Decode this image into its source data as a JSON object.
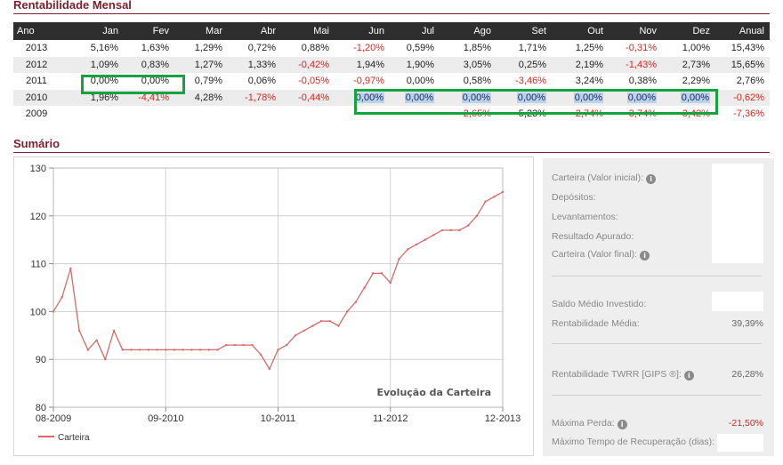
{
  "rentabilidade": {
    "title": "Rentabilidade Mensal",
    "headers": [
      "Ano",
      "Jan",
      "Fev",
      "Mar",
      "Abr",
      "Mai",
      "Jun",
      "Jul",
      "Ago",
      "Set",
      "Out",
      "Nov",
      "Dez",
      "Anual"
    ],
    "rows": [
      {
        "ano": "2013",
        "cells": [
          "5,16%",
          "1,63%",
          "1,29%",
          "0,72%",
          "0,88%",
          "-1,20%",
          "0,59%",
          "1,85%",
          "1,71%",
          "1,25%",
          "-0,31%",
          "1,00%",
          "15,43%"
        ]
      },
      {
        "ano": "2012",
        "cells": [
          "1,09%",
          "0,83%",
          "1,27%",
          "1,33%",
          "-0,42%",
          "1,94%",
          "1,90%",
          "3,05%",
          "0,25%",
          "2,19%",
          "-1,43%",
          "2,73%",
          "15,65%"
        ]
      },
      {
        "ano": "2011",
        "cells": [
          "0,00%",
          "0,00%",
          "0,79%",
          "0,06%",
          "-0,05%",
          "-0,97%",
          "0,00%",
          "0,58%",
          "-3,46%",
          "3,24%",
          "0,38%",
          "2,29%",
          "2,76%"
        ]
      },
      {
        "ano": "2010",
        "cells": [
          "1,96%",
          "-4,41%",
          "4,28%",
          "-1,78%",
          "-0,44%",
          "0,00%",
          "0,00%",
          "0,00%",
          "0,00%",
          "0,00%",
          "0,00%",
          "0,00%",
          "-0,62%"
        ]
      },
      {
        "ano": "2009",
        "cells": [
          "",
          "",
          "",
          "",
          "",
          "",
          "",
          "-2,65%",
          "5,23%",
          "-2,74%",
          "-3,74%",
          "-3,42%",
          "-7,36%"
        ]
      }
    ]
  },
  "sumario": {
    "title": "Sumário",
    "items": {
      "carteira_inicial": {
        "label": "Carteira (Valor inicial):",
        "value": ""
      },
      "depositos": {
        "label": "Depósitos:",
        "value": ""
      },
      "levantamentos": {
        "label": "Levantamentos:",
        "value": ""
      },
      "resultado": {
        "label": "Resultado Apurado:",
        "value": ""
      },
      "carteira_final": {
        "label": "Carteira (Valor final):",
        "value": ""
      },
      "saldo_medio": {
        "label": "Saldo Médio Investido:",
        "value": ""
      },
      "rent_media": {
        "label": "Rentabilidade Média:",
        "value": "39,39%"
      },
      "rent_twrr": {
        "label": "Rentabilidade TWRR [GIPS ®]:",
        "value": "26,28%"
      },
      "max_perda": {
        "label": "Máxima Perda:",
        "value": "-21,50%"
      },
      "max_tempo": {
        "label": "Máximo Tempo de Recuperação (dias):",
        "value": ""
      }
    }
  },
  "chart_data": {
    "type": "line",
    "title": "Evolução da Carteira",
    "xlabel": "",
    "ylabel": "",
    "x_ticks": [
      "08-2009",
      "09-2010",
      "10-2011",
      "11-2012",
      "12-2013"
    ],
    "y_ticks": [
      80,
      90,
      100,
      110,
      120,
      130
    ],
    "ylim": [
      80,
      130
    ],
    "xlim": [
      "2009-08",
      "2013-12"
    ],
    "grid": true,
    "legend_position": "bottom-left",
    "series": [
      {
        "name": "Carteira",
        "color": "#d66a6a",
        "x": [
          "2009-08",
          "2009-09",
          "2009-10",
          "2009-11",
          "2009-12",
          "2010-01",
          "2010-02",
          "2010-03",
          "2010-04",
          "2010-05",
          "2010-06",
          "2010-07",
          "2010-08",
          "2010-09",
          "2010-10",
          "2010-11",
          "2010-12",
          "2011-01",
          "2011-02",
          "2011-03",
          "2011-04",
          "2011-05",
          "2011-06",
          "2011-07",
          "2011-08",
          "2011-09",
          "2011-10",
          "2011-11",
          "2011-12",
          "2012-01",
          "2012-02",
          "2012-03",
          "2012-04",
          "2012-05",
          "2012-06",
          "2012-07",
          "2012-08",
          "2012-09",
          "2012-10",
          "2012-11",
          "2012-12",
          "2013-01",
          "2013-02",
          "2013-03",
          "2013-04",
          "2013-05",
          "2013-06",
          "2013-07",
          "2013-08",
          "2013-09",
          "2013-10",
          "2013-11",
          "2013-12"
        ],
        "values": [
          100,
          103,
          109,
          96,
          92,
          94,
          90,
          96,
          92,
          92,
          92,
          92,
          92,
          92,
          92,
          92,
          92,
          92,
          92,
          92,
          93,
          93,
          93,
          93,
          91,
          88,
          92,
          93,
          95,
          96,
          97,
          98,
          98,
          97,
          100,
          102,
          105,
          108,
          108,
          106,
          111,
          113,
          114,
          115,
          116,
          117,
          117,
          117,
          118,
          120,
          123,
          124,
          125
        ]
      }
    ]
  }
}
